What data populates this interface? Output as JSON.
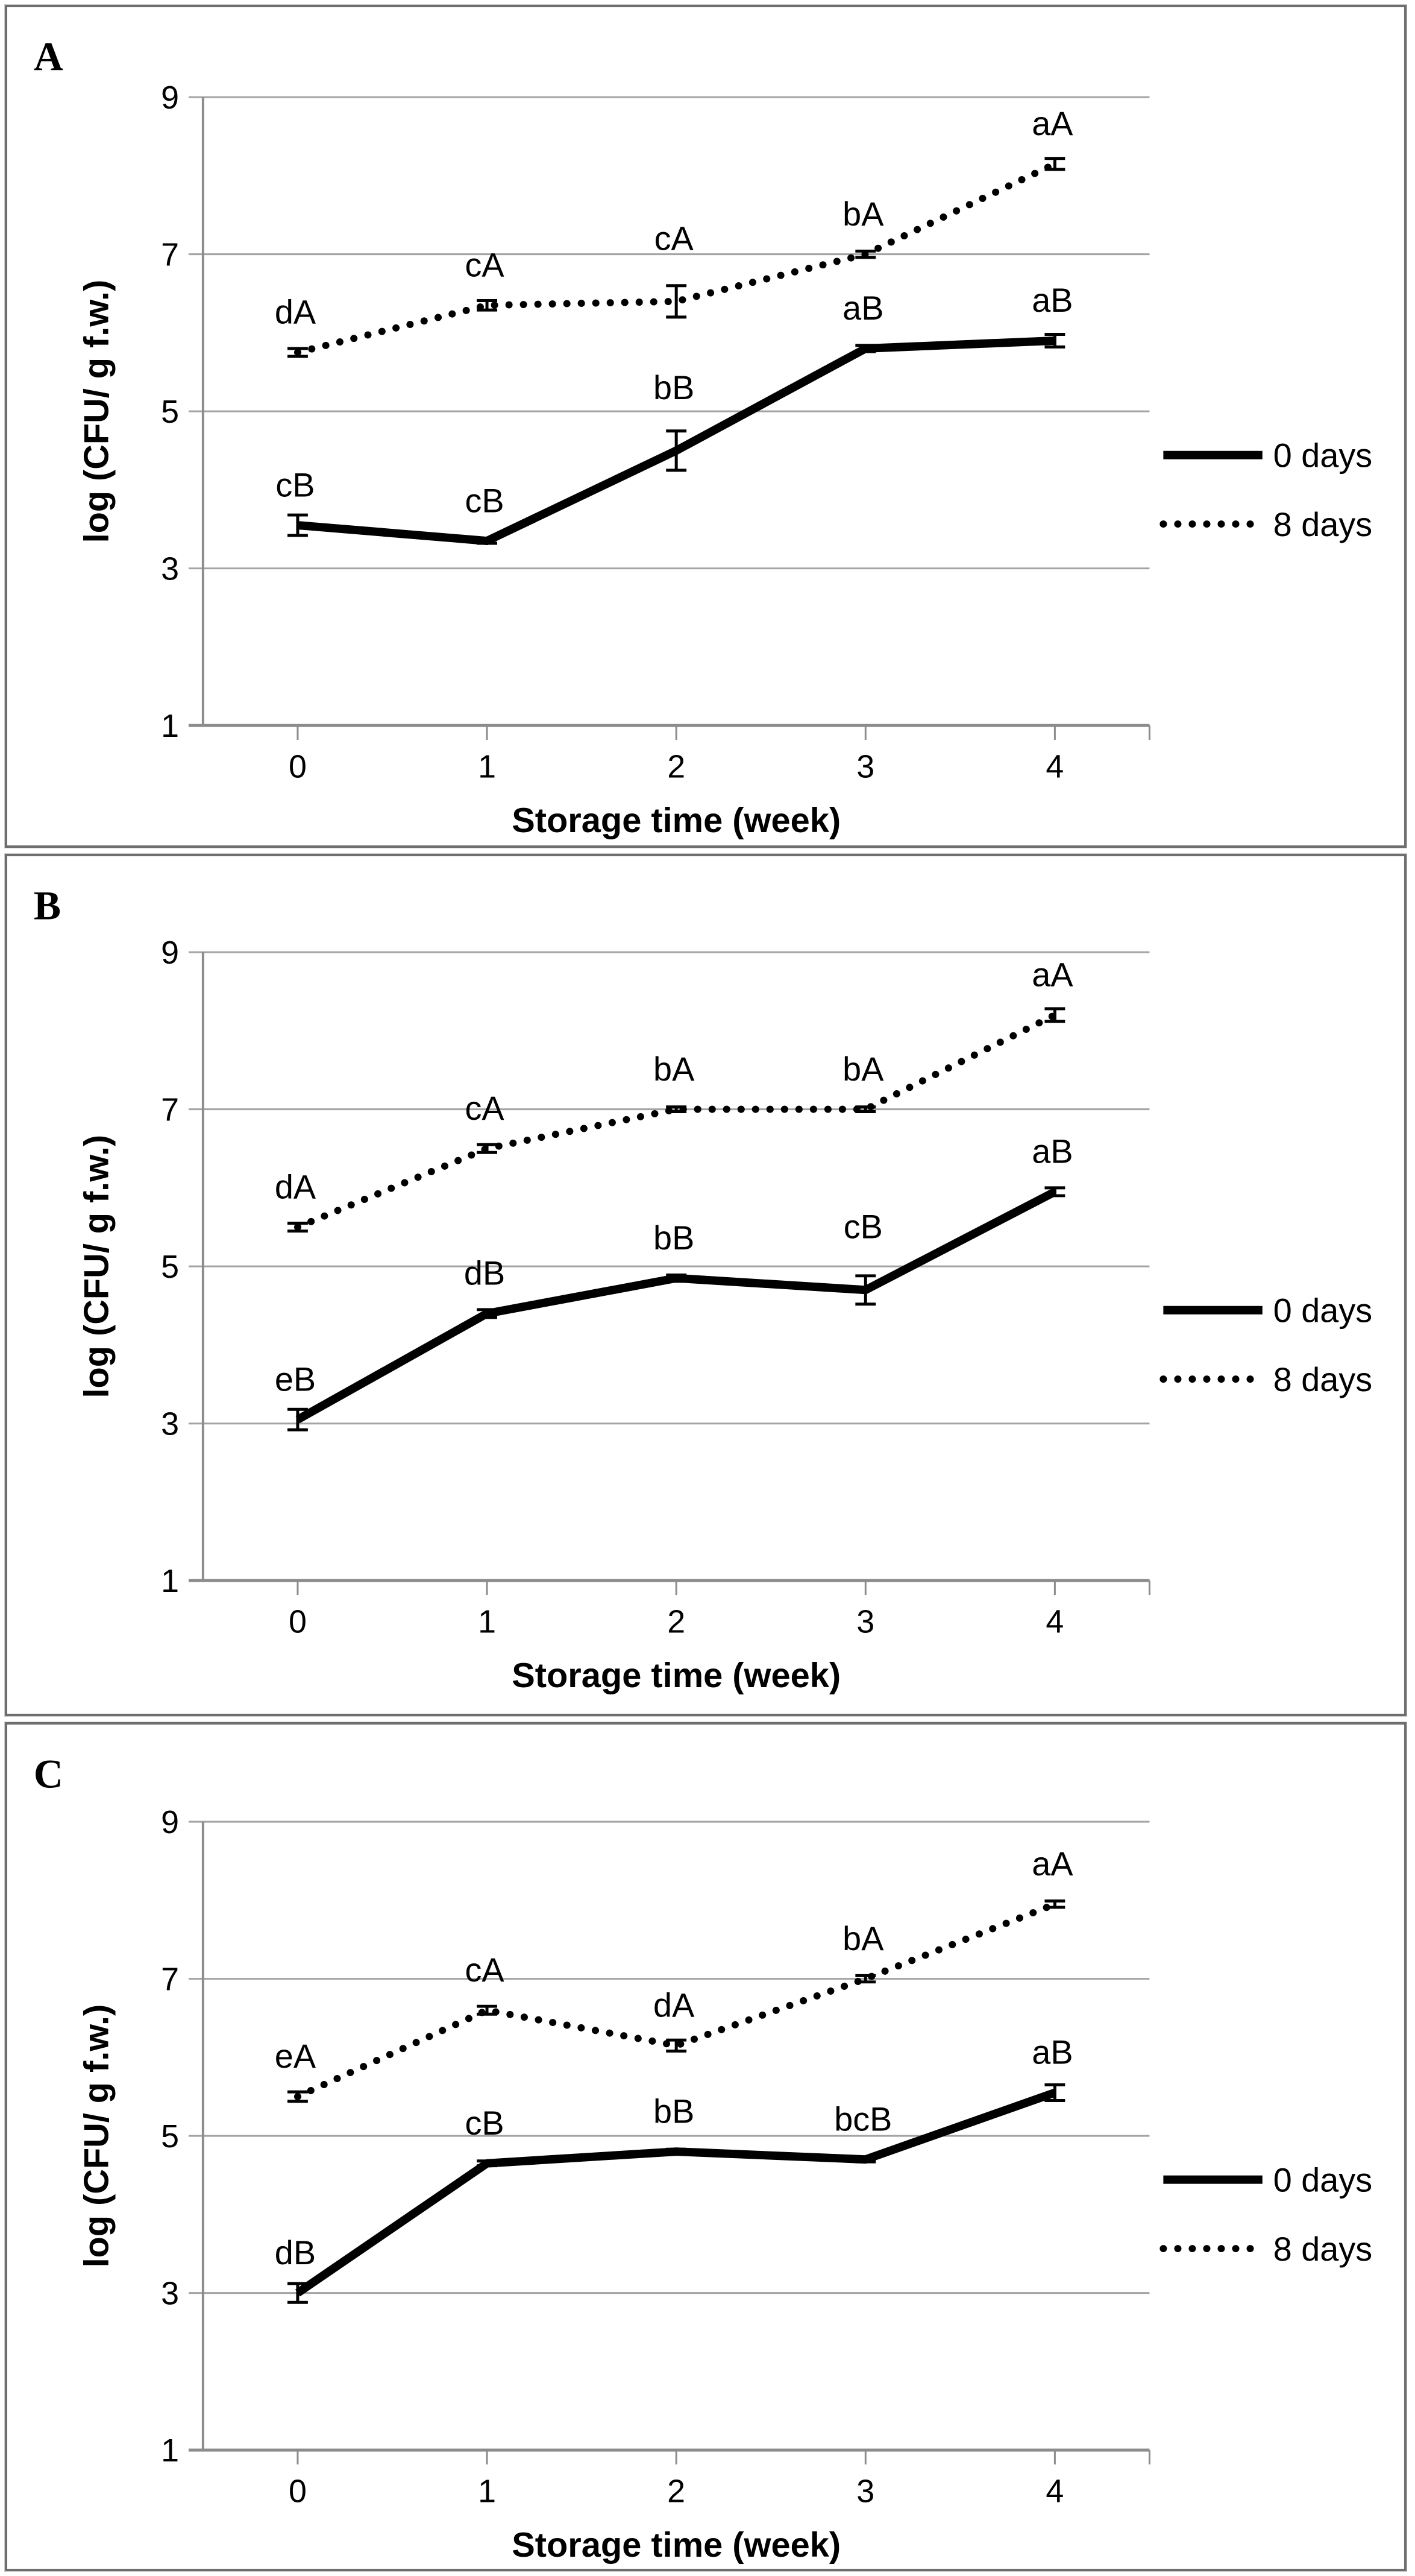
{
  "figure": {
    "description": "Three stacked line charts (panels A, B, C) of microbial counts versus storage time for samples aged 0 days and 8 days, with error bars and significance letter annotations.",
    "colors": {
      "series": "#000000",
      "gridline": "#a3a3a3",
      "axis": "#8c8c8c",
      "panel_border": "#6e6e6e",
      "text": "#000000"
    }
  },
  "chart_data": [
    {
      "type": "line",
      "panel_label": "A",
      "x": [
        0,
        1,
        2,
        3,
        4
      ],
      "xlabel": "Storage time (week)",
      "ylabel": "log (CFU/ g f.w.)",
      "ylim": [
        1,
        9
      ],
      "yticks": [
        9,
        7,
        5,
        3,
        1
      ],
      "grid": true,
      "legend_position": "right",
      "series": [
        {
          "name": "0 days",
          "style": "solid",
          "values": [
            3.55,
            3.35,
            4.5,
            5.8,
            5.9
          ],
          "errors": [
            0.13,
            0.03,
            0.25,
            0.04,
            0.08
          ],
          "point_labels": [
            "cB",
            "cB",
            "bB",
            "aB",
            "aB"
          ]
        },
        {
          "name": "8 days",
          "style": "dotted",
          "values": [
            5.75,
            6.35,
            6.4,
            7.0,
            8.15
          ],
          "errors": [
            0.05,
            0.06,
            0.2,
            0.04,
            0.07
          ],
          "point_labels": [
            "dA",
            "cA",
            "cA",
            "bA",
            "aA"
          ]
        }
      ]
    },
    {
      "type": "line",
      "panel_label": "B",
      "x": [
        0,
        1,
        2,
        3,
        4
      ],
      "xlabel": "Storage time (week)",
      "ylabel": "log (CFU/ g f.w.)",
      "ylim": [
        1,
        9
      ],
      "yticks": [
        9,
        7,
        5,
        3,
        1
      ],
      "grid": true,
      "legend_position": "right",
      "series": [
        {
          "name": "0 days",
          "style": "solid",
          "values": [
            3.05,
            4.4,
            4.85,
            4.7,
            5.95
          ],
          "errors": [
            0.13,
            0.05,
            0.04,
            0.18,
            0.05
          ],
          "point_labels": [
            "eB",
            "dB",
            "bB",
            "cB",
            "aB"
          ]
        },
        {
          "name": "8 days",
          "style": "dotted",
          "values": [
            5.5,
            6.5,
            7.0,
            7.0,
            8.2
          ],
          "errors": [
            0.05,
            0.05,
            0.03,
            0.03,
            0.08
          ],
          "point_labels": [
            "dA",
            "cA",
            "bA",
            "bA",
            "aA"
          ]
        }
      ]
    },
    {
      "type": "line",
      "panel_label": "C",
      "x": [
        0,
        1,
        2,
        3,
        4
      ],
      "xlabel": "Storage time (week)",
      "ylabel": "log (CFU/ g f.w.)",
      "ylim": [
        1,
        9
      ],
      "yticks": [
        9,
        7,
        5,
        3,
        1
      ],
      "grid": true,
      "legend_position": "right",
      "series": [
        {
          "name": "0 days",
          "style": "solid",
          "values": [
            3.0,
            4.65,
            4.8,
            4.7,
            5.55
          ],
          "errors": [
            0.12,
            0.03,
            0.03,
            0.03,
            0.1
          ],
          "point_labels": [
            "dB",
            "cB",
            "bB",
            "bcB",
            "aB"
          ]
        },
        {
          "name": "8 days",
          "style": "dotted",
          "values": [
            5.5,
            6.6,
            6.15,
            7.0,
            7.95
          ],
          "errors": [
            0.06,
            0.05,
            0.07,
            0.04,
            0.04
          ],
          "point_labels": [
            "eA",
            "cA",
            "dA",
            "bA",
            "aA"
          ]
        }
      ]
    }
  ]
}
